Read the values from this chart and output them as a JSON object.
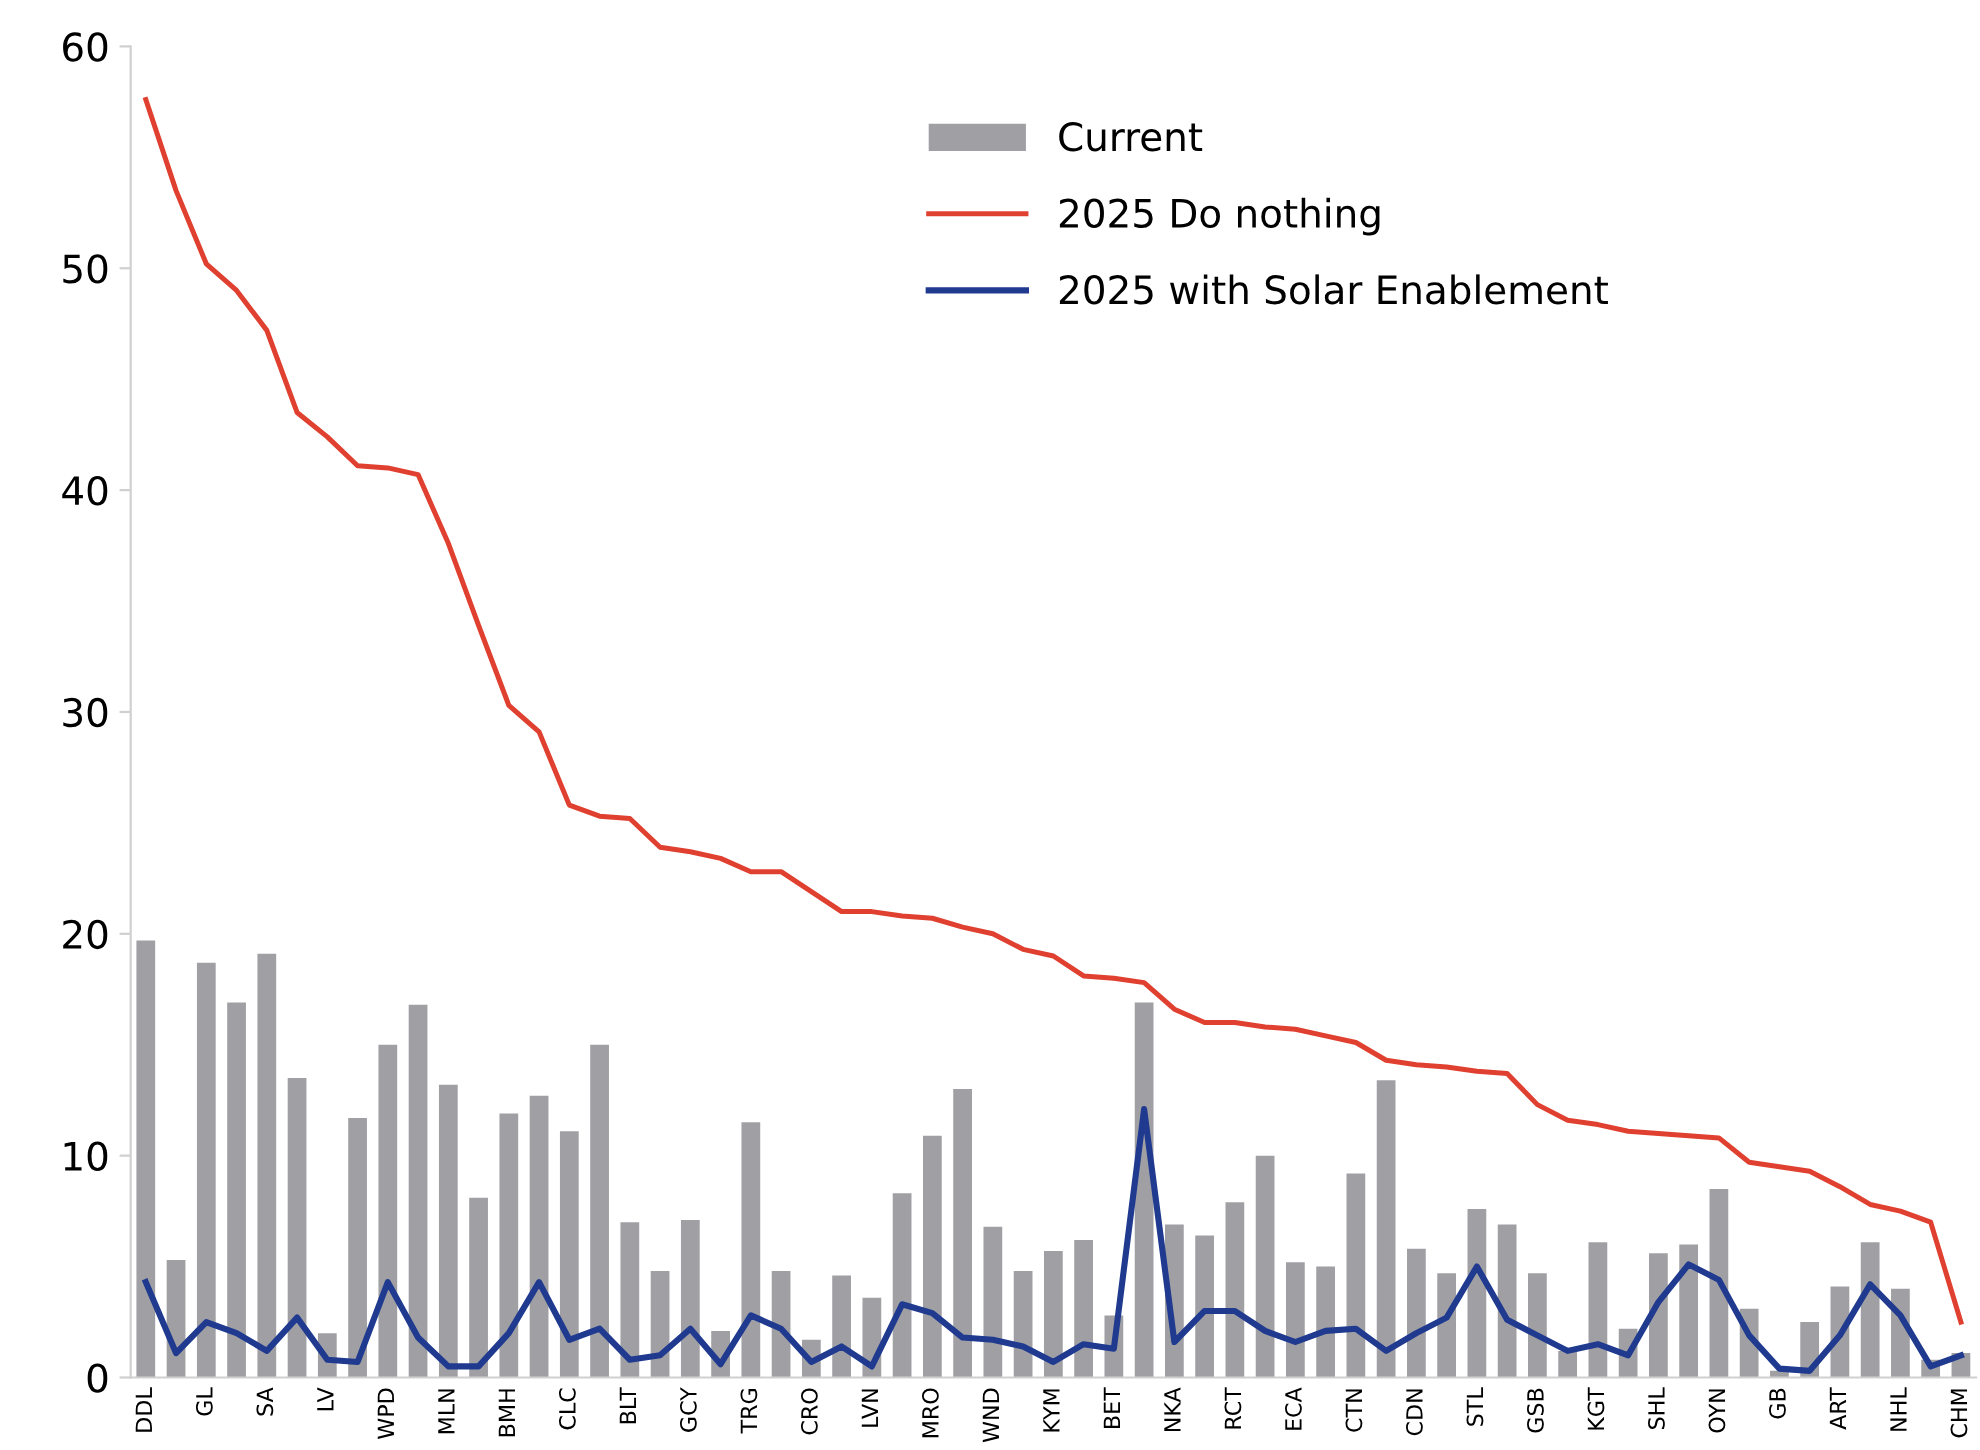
{
  "chart_data": {
    "type": "bar",
    "categories": [
      "DDL",
      null,
      "GL",
      null,
      "SA",
      null,
      "LV",
      null,
      "WPD",
      null,
      "MLN",
      null,
      "BMH",
      null,
      "CLC",
      null,
      "BLT",
      null,
      "GCY",
      null,
      "TRG",
      null,
      "CRO",
      null,
      "LVN",
      null,
      "MRO",
      null,
      "WND",
      null,
      "KYM",
      null,
      "BET",
      null,
      "NKA",
      null,
      "RCT",
      null,
      "ECA",
      null,
      "CTN",
      null,
      "CDN",
      null,
      "STL",
      null,
      "GSB",
      null,
      "KGT",
      null,
      "SHL",
      null,
      "OYN",
      null,
      "GB",
      null,
      "ART",
      null,
      "NHL",
      null,
      "CHM"
    ],
    "series": [
      {
        "name": "Current",
        "color": "#a0a0a4",
        "values": [
          19.7,
          5.3,
          18.7,
          16.9,
          19.1,
          13.5,
          2.0,
          11.7,
          15.0,
          16.8,
          13.2,
          8.1,
          11.9,
          12.7,
          11.1,
          15.0,
          7.0,
          4.8,
          7.1,
          2.1,
          11.5,
          4.8,
          1.7,
          4.6,
          3.6,
          8.3,
          10.9,
          13.0,
          6.8,
          4.8,
          5.7,
          6.2,
          2.8,
          16.9,
          6.9,
          6.4,
          7.9,
          10.0,
          5.2,
          5.0,
          9.2,
          13.4,
          5.8,
          4.7,
          7.6,
          6.9,
          4.7,
          1.2,
          6.1,
          2.2,
          5.6,
          6.0,
          8.5,
          3.1,
          0.3,
          2.5,
          4.1,
          6.1,
          4.0,
          0.8,
          1.1
        ]
      },
      {
        "name": "2025 Do nothing",
        "type": "line",
        "color": "#e04030",
        "values": [
          57.6,
          53.5,
          50.2,
          49.0,
          47.2,
          43.5,
          42.4,
          41.1,
          41.0,
          40.7,
          37.6,
          33.9,
          30.3,
          29.1,
          25.8,
          25.3,
          25.2,
          23.9,
          23.7,
          23.4,
          22.8,
          22.8,
          21.9,
          21.0,
          21.0,
          20.8,
          20.7,
          20.3,
          20.0,
          19.3,
          19.0,
          18.1,
          18.0,
          17.8,
          16.6,
          16.0,
          16.0,
          15.8,
          15.7,
          15.4,
          15.1,
          14.3,
          14.1,
          14.0,
          13.8,
          13.7,
          12.3,
          11.6,
          11.4,
          11.1,
          11.0,
          10.9,
          10.8,
          9.7,
          9.5,
          9.3,
          8.6,
          7.8,
          7.5,
          7.0,
          2.5
        ]
      },
      {
        "name": "2025 with Solar Enablement",
        "type": "line",
        "color": "#1f3a8f",
        "values": [
          4.3,
          1.1,
          2.5,
          2.0,
          1.2,
          2.7,
          0.8,
          0.7,
          4.3,
          1.8,
          0.5,
          0.5,
          2.0,
          4.3,
          1.7,
          2.2,
          0.8,
          1.0,
          2.2,
          0.6,
          2.8,
          2.2,
          0.7,
          1.4,
          0.5,
          3.3,
          2.9,
          1.8,
          1.7,
          1.4,
          0.7,
          1.5,
          1.3,
          12.1,
          1.6,
          3.0,
          3.0,
          2.1,
          1.6,
          2.1,
          2.2,
          1.2,
          2.0,
          2.7,
          5.0,
          2.6,
          1.9,
          1.2,
          1.5,
          1.0,
          3.4,
          5.1,
          4.4,
          1.9,
          0.4,
          0.3,
          1.9,
          4.2,
          2.8,
          0.5,
          1.0
        ]
      }
    ],
    "ylim": [
      0,
      60
    ],
    "yticks": [
      0,
      10,
      20,
      30,
      40,
      50,
      60
    ],
    "grid": false,
    "legend": "top right",
    "marker": "none",
    "line_style": "solid"
  }
}
